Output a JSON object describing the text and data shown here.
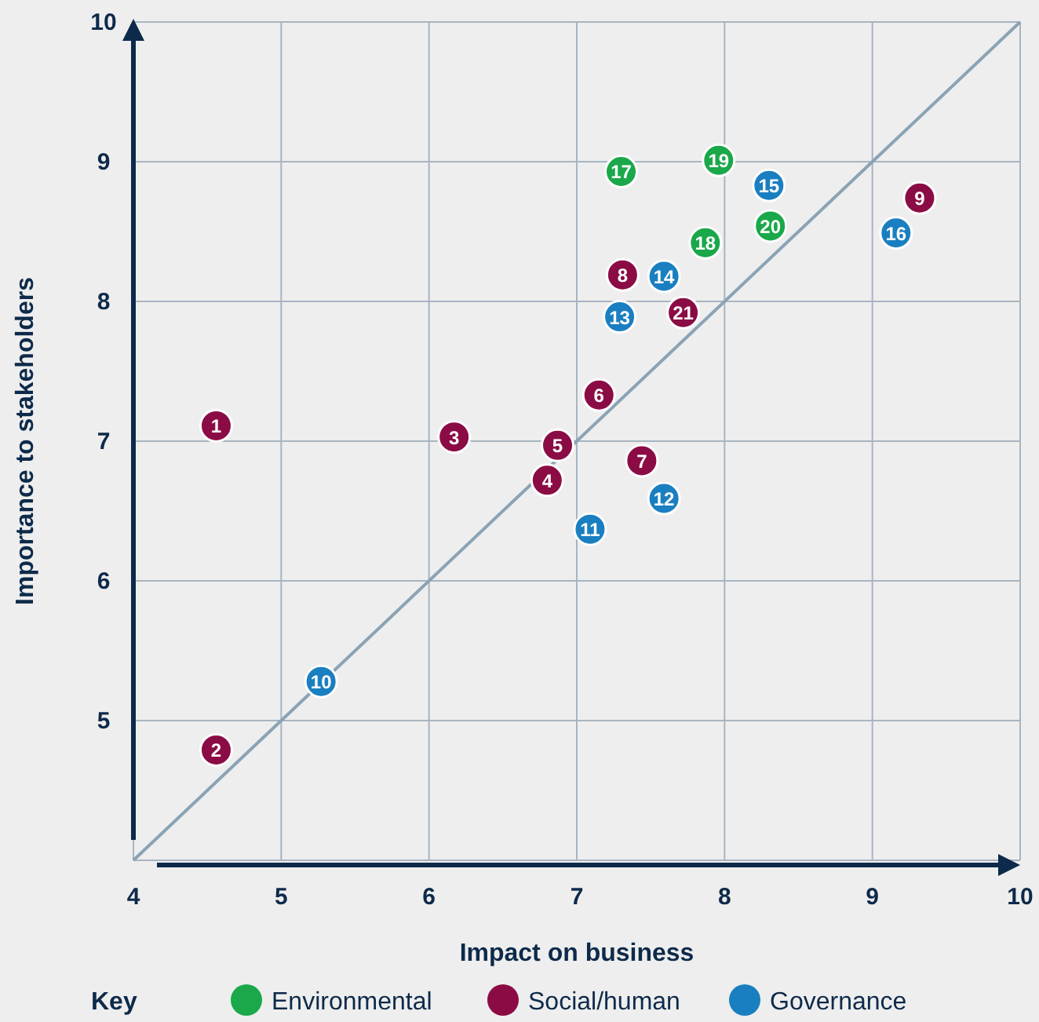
{
  "chart_data": {
    "type": "scatter",
    "xlabel": "Impact on business",
    "ylabel": "Importance to stakeholders",
    "legend_title": "Key",
    "legend": "bottom",
    "grid": true,
    "marker": "circle",
    "xlim": [
      4,
      10
    ],
    "ylim": [
      4,
      10
    ],
    "xticks": [
      4,
      5,
      6,
      7,
      8,
      9,
      10
    ],
    "yticks": [
      {
        "value": 4,
        "label": null
      },
      5,
      6,
      7,
      8,
      9,
      10
    ],
    "series": [
      {
        "name": "Environmental",
        "color": "#1aa84a",
        "x": [
          7.3,
          7.87,
          7.96,
          8.31
        ],
        "values": [
          8.93,
          8.42,
          9.01,
          8.54
        ]
      },
      {
        "name": "Social/human",
        "color": "#8b0c45",
        "x": [
          4.56,
          4.56,
          6.17,
          6.8,
          6.87,
          7.15,
          7.44,
          7.31,
          9.32,
          7.72
        ],
        "values": [
          7.11,
          4.79,
          7.03,
          6.72,
          6.97,
          7.33,
          6.86,
          8.19,
          8.74,
          7.92
        ]
      },
      {
        "name": "Governance",
        "color": "#1a7fc1",
        "x": [
          5.27,
          7.09,
          7.59,
          7.29,
          7.59,
          8.3,
          9.16
        ],
        "values": [
          5.28,
          6.37,
          6.59,
          7.89,
          8.18,
          8.83,
          8.49
        ]
      },
      {
        "type": "line",
        "color": "#8aa3b5",
        "x": [
          4,
          10
        ],
        "values": [
          4,
          10
        ],
        "marker": "none"
      }
    ],
    "annotations": [
      {
        "text": "1",
        "x": 4.56,
        "y": 7.11
      },
      {
        "text": "2",
        "x": 4.56,
        "y": 4.79
      },
      {
        "text": "3",
        "x": 6.17,
        "y": 7.03
      },
      {
        "text": "4",
        "x": 6.8,
        "y": 6.72
      },
      {
        "text": "5",
        "x": 6.87,
        "y": 6.97
      },
      {
        "text": "6",
        "x": 7.15,
        "y": 7.33
      },
      {
        "text": "7",
        "x": 7.44,
        "y": 6.86
      },
      {
        "text": "8",
        "x": 7.31,
        "y": 8.19
      },
      {
        "text": "9",
        "x": 9.32,
        "y": 8.74
      },
      {
        "text": "10",
        "x": 5.27,
        "y": 5.28
      },
      {
        "text": "11",
        "x": 7.09,
        "y": 6.37
      },
      {
        "text": "12",
        "x": 7.59,
        "y": 6.59
      },
      {
        "text": "13",
        "x": 7.29,
        "y": 7.89
      },
      {
        "text": "14",
        "x": 7.59,
        "y": 8.18
      },
      {
        "text": "15",
        "x": 8.3,
        "y": 8.83
      },
      {
        "text": "16",
        "x": 9.16,
        "y": 8.49
      },
      {
        "text": "17",
        "x": 7.3,
        "y": 8.93
      },
      {
        "text": "18",
        "x": 7.87,
        "y": 8.42
      },
      {
        "text": "19",
        "x": 7.96,
        "y": 9.01
      },
      {
        "text": "20",
        "x": 8.31,
        "y": 8.54
      },
      {
        "text": "21",
        "x": 7.72,
        "y": 7.92
      }
    ]
  }
}
